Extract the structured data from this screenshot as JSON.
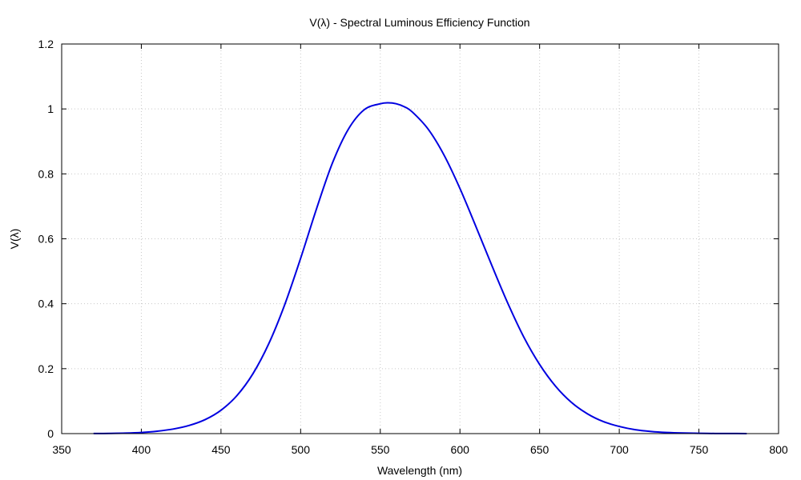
{
  "chart_data": {
    "type": "line",
    "title": "V(λ) - Spectral Luminous Efficiency Function",
    "xlabel": "Wavelength (nm)",
    "ylabel": "V(λ)",
    "xlim": [
      350,
      800
    ],
    "ylim": [
      0,
      1.2
    ],
    "xticks": [
      350,
      400,
      450,
      500,
      550,
      600,
      650,
      700,
      750,
      800
    ],
    "xtick_labels": [
      "350",
      "400",
      "450",
      "500",
      "550",
      "600",
      "650",
      "700",
      "750",
      "800"
    ],
    "yticks": [
      0,
      0.2,
      0.4,
      0.6,
      0.8,
      1,
      1.2
    ],
    "ytick_labels": [
      "0",
      "0.2",
      "0.4",
      "0.6",
      "0.8",
      "1",
      "1.2"
    ],
    "grid": true,
    "line_color": "#0000e0",
    "grid_color": "#c8c8c8",
    "series": [
      {
        "x": [
          370,
          380,
          390,
          400,
          410,
          420,
          430,
          440,
          450,
          460,
          470,
          480,
          490,
          500,
          510,
          520,
          530,
          540,
          550,
          555,
          560,
          565,
          570,
          580,
          590,
          600,
          610,
          620,
          630,
          640,
          650,
          660,
          670,
          680,
          690,
          700,
          710,
          720,
          730,
          740,
          750,
          760,
          770,
          780
        ],
        "y": [
          0.0002,
          0.0006,
          0.0015,
          0.0035,
          0.0075,
          0.014,
          0.025,
          0.043,
          0.072,
          0.117,
          0.184,
          0.277,
          0.397,
          0.54,
          0.693,
          0.834,
          0.938,
          0.998,
          1.016,
          1.019,
          1.016,
          1.007,
          0.991,
          0.938,
          0.858,
          0.755,
          0.638,
          0.518,
          0.402,
          0.298,
          0.213,
          0.146,
          0.096,
          0.061,
          0.037,
          0.022,
          0.012,
          0.0066,
          0.0035,
          0.0018,
          0.0009,
          0.0004,
          0.0002,
          0.0001
        ]
      }
    ]
  }
}
